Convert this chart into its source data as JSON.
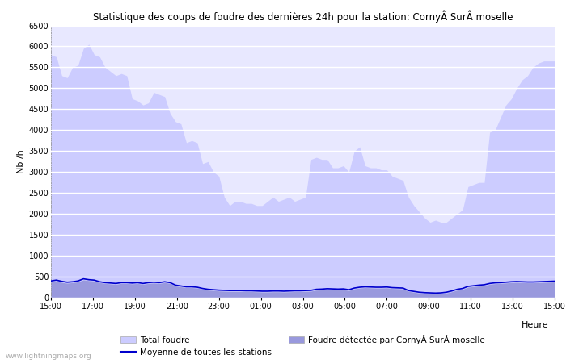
{
  "title": "Statistique des coups de foudre des dernières 24h pour la station: CornyÂ SurÂ moselle",
  "ylabel": "Nb /h",
  "ylim": [
    0,
    6500
  ],
  "yticks": [
    0,
    500,
    1000,
    1500,
    2000,
    2500,
    3000,
    3500,
    4000,
    4500,
    5000,
    5500,
    6000,
    6500
  ],
  "xtick_labels": [
    "15:00",
    "17:00",
    "19:00",
    "21:00",
    "23:00",
    "01:00",
    "03:00",
    "05:00",
    "07:00",
    "09:00",
    "11:00",
    "13:00",
    "15:00"
  ],
  "bg_color": "#ffffff",
  "plot_bg_color": "#e8e8ff",
  "grid_color": "#ffffff",
  "fill_total_color": "#ccccff",
  "fill_local_color": "#9999dd",
  "line_color": "#0000cc",
  "legend_label_total": "Total foudre",
  "legend_label_mean": "Moyenne de toutes les stations",
  "legend_label_local": "Foudre détectée par CornyÂ SurÂ moselle",
  "watermark": "www.lightningmaps.org",
  "total_foudre": [
    5800,
    5750,
    5300,
    5250,
    5500,
    5550,
    5950,
    6050,
    5800,
    5750,
    5500,
    5400,
    5300,
    5350,
    5300,
    4750,
    4700,
    4600,
    4650,
    4900,
    4850,
    4800,
    4400,
    4200,
    4150,
    3700,
    3750,
    3700,
    3200,
    3250,
    3000,
    2900,
    2400,
    2200,
    2300,
    2300,
    2250,
    2250,
    2200,
    2200,
    2300,
    2400,
    2300,
    2350,
    2400,
    2300,
    2350,
    2400,
    3300,
    3350,
    3300,
    3300,
    3100,
    3100,
    3150,
    3000,
    3500,
    3600,
    3150,
    3100,
    3100,
    3050,
    3050,
    2900,
    2850,
    2800,
    2400,
    2200,
    2050,
    1900,
    1800,
    1850,
    1800,
    1800,
    1900,
    2000,
    2100,
    2650,
    2700,
    2750,
    2750,
    3950,
    4000,
    4300,
    4600,
    4750,
    5000,
    5200,
    5300,
    5500,
    5600,
    5650,
    5650,
    5650
  ],
  "mean_line": [
    400,
    420,
    390,
    370,
    380,
    400,
    450,
    430,
    420,
    380,
    360,
    350,
    340,
    360,
    360,
    350,
    360,
    340,
    360,
    370,
    360,
    380,
    360,
    300,
    280,
    260,
    260,
    250,
    220,
    200,
    190,
    180,
    175,
    170,
    170,
    170,
    165,
    165,
    160,
    155,
    155,
    160,
    160,
    155,
    160,
    165,
    165,
    170,
    175,
    200,
    205,
    215,
    210,
    205,
    210,
    190,
    230,
    250,
    260,
    255,
    250,
    250,
    255,
    240,
    235,
    230,
    170,
    150,
    130,
    120,
    115,
    110,
    115,
    130,
    160,
    200,
    220,
    270,
    285,
    300,
    310,
    340,
    355,
    360,
    370,
    380,
    385,
    380,
    375,
    375,
    380,
    385,
    390,
    395
  ],
  "local_foudre": [
    380,
    400,
    365,
    345,
    360,
    378,
    425,
    408,
    398,
    360,
    340,
    330,
    320,
    340,
    340,
    330,
    340,
    320,
    340,
    350,
    340,
    360,
    340,
    280,
    260,
    240,
    240,
    230,
    200,
    180,
    170,
    160,
    155,
    150,
    150,
    150,
    145,
    145,
    140,
    135,
    135,
    140,
    140,
    135,
    140,
    145,
    145,
    150,
    155,
    180,
    185,
    195,
    190,
    185,
    190,
    170,
    210,
    230,
    240,
    235,
    230,
    230,
    235,
    220,
    215,
    210,
    150,
    130,
    110,
    100,
    95,
    90,
    95,
    110,
    140,
    180,
    200,
    250,
    265,
    280,
    290,
    320,
    335,
    340,
    350,
    360,
    365,
    360,
    355,
    355,
    360,
    365,
    370,
    375
  ],
  "n_points": 94,
  "figsize": [
    7.0,
    4.5
  ],
  "dpi": 100
}
